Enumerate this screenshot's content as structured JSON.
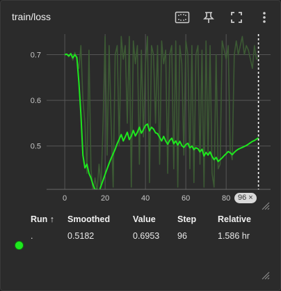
{
  "card": {
    "title": "train/loss",
    "icons": [
      "fit-domain-icon",
      "pin-icon",
      "fullscreen-icon",
      "more-vert-icon"
    ]
  },
  "chart_data": {
    "type": "line",
    "title": "train/loss",
    "xlabel": "",
    "ylabel": "",
    "xlim": [
      -9,
      102
    ],
    "ylim": [
      0.405,
      0.745
    ],
    "x_ticks": [
      "0",
      "20",
      "40",
      "60",
      "80"
    ],
    "y_ticks": [
      "0.7",
      "0.6",
      "0.5"
    ],
    "grid": true,
    "series": [
      {
        "name": "",
        "role": "smoothed",
        "color": "#1ee81e",
        "x": [
          0,
          1,
          2,
          3,
          4,
          5,
          6,
          7,
          8,
          9,
          10,
          11,
          12,
          13,
          14,
          15,
          16,
          17,
          18,
          19,
          20,
          21,
          22,
          23,
          24,
          25,
          26,
          27,
          28,
          29,
          30,
          31,
          32,
          33,
          34,
          35,
          36,
          37,
          38,
          39,
          40,
          41,
          42,
          43,
          44,
          45,
          46,
          47,
          48,
          49,
          50,
          51,
          52,
          53,
          54,
          55,
          56,
          57,
          58,
          59,
          60,
          61,
          62,
          63,
          64,
          65,
          66,
          67,
          68,
          69,
          70,
          71,
          72,
          73,
          74,
          75,
          76,
          77,
          78,
          79,
          80,
          81,
          82,
          83,
          84,
          85,
          86,
          87,
          88,
          89,
          90,
          91,
          92,
          93,
          94,
          95,
          96
        ],
        "y": [
          0.7,
          0.701,
          0.697,
          0.702,
          0.693,
          0.7,
          0.694,
          0.64,
          0.57,
          0.48,
          0.452,
          0.46,
          0.44,
          0.43,
          0.415,
          0.405,
          0.405,
          0.4,
          0.413,
          0.425,
          0.438,
          0.45,
          0.462,
          0.473,
          0.483,
          0.493,
          0.505,
          0.515,
          0.525,
          0.511,
          0.52,
          0.53,
          0.514,
          0.522,
          0.534,
          0.522,
          0.53,
          0.541,
          0.528,
          0.536,
          0.545,
          0.548,
          0.533,
          0.541,
          0.537,
          0.529,
          0.527,
          0.519,
          0.511,
          0.521,
          0.511,
          0.504,
          0.512,
          0.517,
          0.505,
          0.511,
          0.502,
          0.51,
          0.501,
          0.497,
          0.503,
          0.506,
          0.496,
          0.5,
          0.492,
          0.496,
          0.494,
          0.487,
          0.493,
          0.478,
          0.486,
          0.48,
          0.487,
          0.477,
          0.47,
          0.475,
          0.466,
          0.47,
          0.474,
          0.479,
          0.483,
          0.488,
          0.485,
          0.481,
          0.486,
          0.49,
          0.493,
          0.495,
          0.497,
          0.499,
          0.501,
          0.504,
          0.507,
          0.51,
          0.512,
          0.515,
          0.518
        ]
      },
      {
        "name": "",
        "role": "raw",
        "color": "#3c5a34",
        "x": [
          0,
          1,
          2,
          3,
          4,
          5,
          6,
          7,
          8,
          9,
          10,
          11,
          12,
          13,
          14,
          15,
          16,
          17,
          18,
          19,
          20,
          21,
          22,
          23,
          24,
          25,
          26,
          27,
          28,
          29,
          30,
          31,
          32,
          33,
          34,
          35,
          36,
          37,
          38,
          39,
          40,
          41,
          42,
          43,
          44,
          45,
          46,
          47,
          48,
          49,
          50,
          51,
          52,
          53,
          54,
          55,
          56,
          57,
          58,
          59,
          60,
          61,
          62,
          63,
          64,
          65,
          66,
          67,
          68,
          69,
          70,
          71,
          72,
          73,
          74,
          75,
          76,
          77,
          78,
          79,
          80,
          81,
          82,
          83,
          84,
          85,
          86,
          87,
          88,
          89,
          90,
          91,
          92,
          93,
          94,
          95,
          96
        ],
        "y": [
          0.7,
          0.702,
          0.695,
          0.703,
          0.688,
          0.705,
          0.69,
          0.67,
          0.72,
          0.6,
          0.55,
          0.44,
          0.71,
          0.45,
          0.4,
          0.43,
          0.4,
          0.46,
          0.41,
          0.55,
          0.74,
          0.48,
          0.72,
          0.55,
          0.41,
          0.7,
          0.72,
          0.5,
          0.74,
          0.69,
          0.72,
          0.55,
          0.74,
          0.41,
          0.73,
          0.68,
          0.72,
          0.46,
          0.71,
          0.52,
          0.68,
          0.74,
          0.42,
          0.72,
          0.7,
          0.55,
          0.72,
          0.46,
          0.73,
          0.68,
          0.71,
          0.44,
          0.7,
          0.72,
          0.45,
          0.73,
          0.41,
          0.72,
          0.68,
          0.48,
          0.73,
          0.7,
          0.45,
          0.72,
          0.42,
          0.7,
          0.72,
          0.46,
          0.71,
          0.41,
          0.73,
          0.48,
          0.72,
          0.44,
          0.41,
          0.7,
          0.45,
          0.46,
          0.73,
          0.71,
          0.69,
          0.72,
          0.49,
          0.47,
          0.7,
          0.73,
          0.7,
          0.72,
          0.74,
          0.7,
          0.72,
          0.71,
          0.69,
          0.67,
          0.72,
          0.69,
          0.695
        ]
      }
    ],
    "cursor_step": 96,
    "cursor_label": "96"
  },
  "table": {
    "headers": {
      "run": "Run",
      "sort_icon": "↑",
      "smoothed": "Smoothed",
      "value": "Value",
      "step": "Step",
      "relative": "Relative"
    },
    "rows": [
      {
        "run": ".",
        "smoothed": "0.5182",
        "value": "0.6953",
        "step": "96",
        "relative": "1.586 hr",
        "color": "#1ee81e"
      }
    ]
  },
  "chip": {
    "close": "×"
  }
}
